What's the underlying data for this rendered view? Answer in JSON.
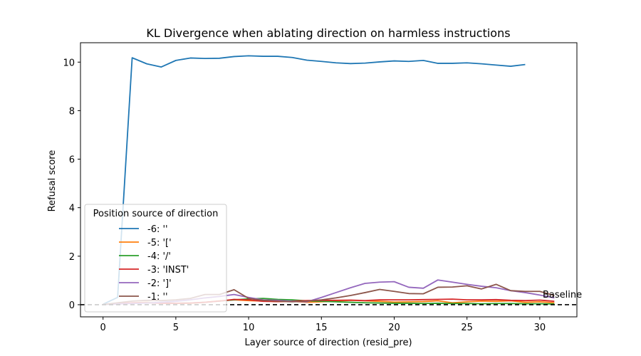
{
  "chart_data": {
    "type": "line",
    "title": "KL Divergence when ablating direction on harmless instructions",
    "xlabel": "Layer source of direction (resid_pre)",
    "ylabel": "Refusal score",
    "xlim": [
      -1.55,
      32.55
    ],
    "ylim": [
      -0.5,
      10.8
    ],
    "x_ticks": [
      0,
      5,
      10,
      15,
      20,
      25,
      30
    ],
    "y_ticks": [
      0,
      2,
      4,
      6,
      8,
      10
    ],
    "grid": false,
    "legend": {
      "title": "Position source of direction",
      "placement": "lower-left"
    },
    "baseline": {
      "value": 0,
      "label": "Baseline",
      "style": "dashed",
      "color": "#000000"
    },
    "series": [
      {
        "name": "-6: ''",
        "color": "#1f77b4",
        "x": [
          0,
          1,
          2,
          3,
          4,
          5,
          6,
          7,
          8,
          9,
          10,
          11,
          12,
          13,
          14,
          15,
          16,
          17,
          18,
          19,
          20,
          21,
          22,
          23,
          24,
          25,
          26,
          27,
          28,
          29
        ],
        "values": [
          0.02,
          0.3,
          10.18,
          9.93,
          9.8,
          10.07,
          10.17,
          10.15,
          10.16,
          10.23,
          10.26,
          10.24,
          10.24,
          10.19,
          10.08,
          10.03,
          9.97,
          9.94,
          9.96,
          10.01,
          10.05,
          10.03,
          10.07,
          9.95,
          9.95,
          9.97,
          9.93,
          9.88,
          9.83,
          9.9
        ]
      },
      {
        "name": "-5: '['",
        "color": "#ff7f0e",
        "x": [
          0,
          1,
          2,
          3,
          4,
          5,
          6,
          7,
          8,
          9,
          10,
          11,
          12,
          13,
          14,
          15,
          16,
          17,
          18,
          19,
          20,
          21,
          22,
          23,
          24,
          25,
          26,
          27,
          28,
          29,
          30,
          31
        ],
        "values": [
          0.01,
          0.05,
          0.08,
          0.1,
          0.06,
          0.05,
          0.06,
          0.1,
          0.16,
          0.2,
          0.17,
          0.15,
          0.13,
          0.14,
          0.1,
          0.12,
          0.15,
          0.18,
          0.16,
          0.14,
          0.11,
          0.12,
          0.13,
          0.16,
          0.08,
          0.12,
          0.15,
          0.14,
          0.16,
          0.1,
          0.12,
          0.08
        ]
      },
      {
        "name": "-4: '/'",
        "color": "#2ca02c",
        "x": [
          0,
          1,
          2,
          3,
          4,
          5,
          6,
          7,
          8,
          9,
          10,
          11,
          12,
          13,
          14,
          15,
          16,
          17,
          18,
          19,
          20,
          21,
          22,
          23,
          24,
          25,
          26,
          27,
          28,
          29,
          30,
          31
        ],
        "values": [
          0.01,
          0.04,
          0.06,
          0.08,
          0.07,
          0.06,
          0.07,
          0.1,
          0.15,
          0.2,
          0.24,
          0.26,
          0.22,
          0.2,
          0.16,
          0.14,
          0.12,
          0.1,
          0.08,
          0.07,
          0.06,
          0.06,
          0.05,
          0.06,
          0.05,
          0.05,
          0.04,
          0.05,
          0.05,
          0.04,
          0.04,
          0.03
        ]
      },
      {
        "name": "-3: 'INST'",
        "color": "#d62728",
        "x": [
          0,
          1,
          2,
          3,
          4,
          5,
          6,
          7,
          8,
          9,
          10,
          11,
          12,
          13,
          14,
          15,
          16,
          17,
          18,
          19,
          20,
          21,
          22,
          23,
          24,
          25,
          26,
          27,
          28,
          29,
          30,
          31
        ],
        "values": [
          0.01,
          0.05,
          0.08,
          0.08,
          0.06,
          0.06,
          0.07,
          0.1,
          0.15,
          0.22,
          0.2,
          0.14,
          0.13,
          0.15,
          0.17,
          0.18,
          0.18,
          0.19,
          0.17,
          0.2,
          0.2,
          0.2,
          0.21,
          0.22,
          0.23,
          0.2,
          0.2,
          0.21,
          0.18,
          0.17,
          0.19,
          0.14
        ]
      },
      {
        "name": "-2: ']'",
        "color": "#9467bd",
        "x": [
          0,
          1,
          2,
          3,
          4,
          5,
          6,
          7,
          8,
          9,
          10,
          11,
          12,
          13,
          14,
          15,
          16,
          17,
          18,
          19,
          20,
          21,
          22,
          23,
          24,
          25,
          26,
          27,
          28,
          29,
          30,
          31
        ],
        "values": [
          0.01,
          0.03,
          0.05,
          0.07,
          0.1,
          0.14,
          0.2,
          0.28,
          0.34,
          0.42,
          0.3,
          0.2,
          0.18,
          0.14,
          0.12,
          0.3,
          0.5,
          0.7,
          0.88,
          0.93,
          0.95,
          0.72,
          0.68,
          1.02,
          0.93,
          0.84,
          0.76,
          0.7,
          0.58,
          0.5,
          0.4,
          0.28
        ]
      },
      {
        "name": "-1: ''",
        "color": "#8c564b",
        "x": [
          0,
          1,
          2,
          3,
          4,
          5,
          6,
          7,
          8,
          9,
          10,
          11,
          12,
          13,
          14,
          15,
          16,
          17,
          18,
          19,
          20,
          21,
          22,
          23,
          24,
          25,
          26,
          27,
          28,
          29,
          30,
          31
        ],
        "values": [
          0.01,
          0.08,
          0.15,
          0.18,
          0.17,
          0.2,
          0.26,
          0.42,
          0.42,
          0.62,
          0.26,
          0.18,
          0.15,
          0.12,
          0.15,
          0.2,
          0.28,
          0.38,
          0.5,
          0.63,
          0.55,
          0.46,
          0.45,
          0.72,
          0.73,
          0.78,
          0.65,
          0.84,
          0.58,
          0.55,
          0.55,
          0.38
        ]
      }
    ]
  }
}
